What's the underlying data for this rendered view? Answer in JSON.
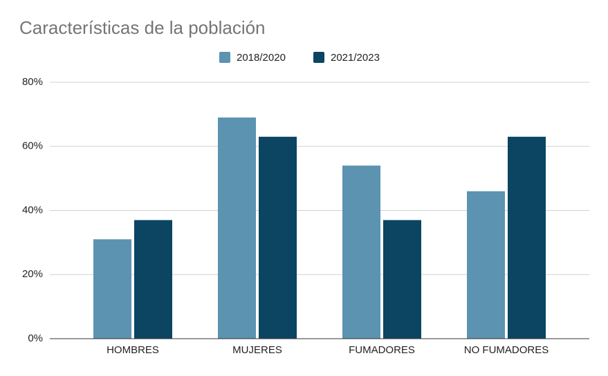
{
  "chart_data": {
    "type": "bar",
    "title": "Características de la población",
    "categories": [
      "HOMBRES",
      "MUJERES",
      "FUMADORES",
      "NO FUMADORES"
    ],
    "series": [
      {
        "name": "2018/2020",
        "color": "#5b93b0",
        "values": [
          31,
          69,
          54,
          46
        ]
      },
      {
        "name": "2021/2023",
        "color": "#0b4562",
        "values": [
          37,
          63,
          37,
          63
        ]
      }
    ],
    "ylim": [
      0,
      80
    ],
    "yticks": [
      {
        "value": 0,
        "label": "0%"
      },
      {
        "value": 20,
        "label": "20%"
      },
      {
        "value": 40,
        "label": "40%"
      },
      {
        "value": 60,
        "label": "60%"
      },
      {
        "value": 80,
        "label": "80%"
      }
    ],
    "grid": true,
    "legend": "top"
  }
}
